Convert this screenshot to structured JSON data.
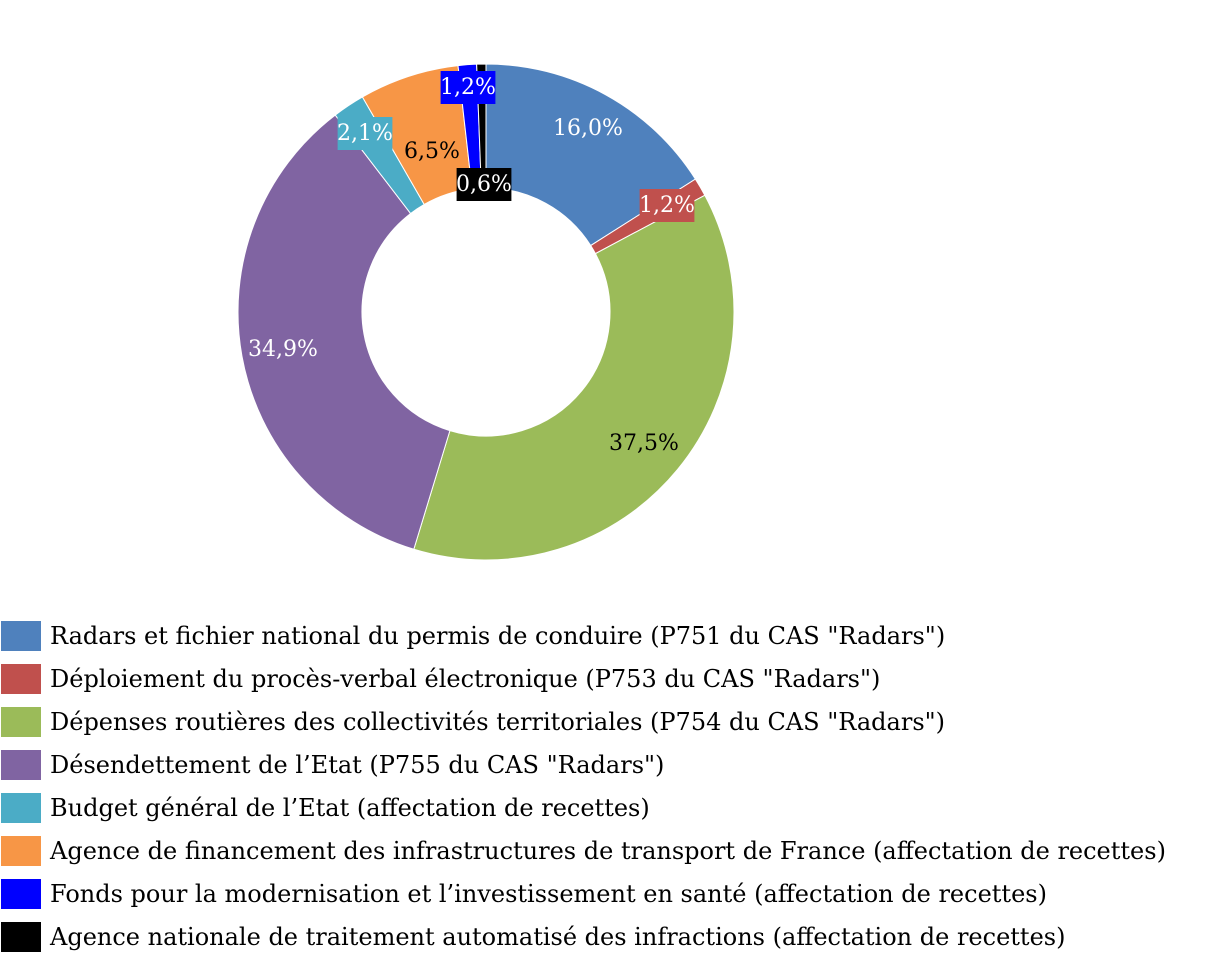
{
  "chart_data": {
    "type": "pie",
    "title": "",
    "slices": [
      {
        "label": "Radars et fichier national du permis de conduire (P751 du CAS \"Radars\")",
        "value": 16.0,
        "display": "16,0%",
        "color": "#4F81BD"
      },
      {
        "label": "Déploiement du procès-verbal électronique (P753 du CAS \"Radars\")",
        "value": 1.2,
        "display": "1,2%",
        "color": "#C0504D"
      },
      {
        "label": "Dépenses routières des collectivités territoriales (P754 du CAS \"Radars\")",
        "value": 37.5,
        "display": "37,5%",
        "color": "#9BBB59"
      },
      {
        "label": "Désendettement de l’Etat (P755 du CAS \"Radars\")",
        "value": 34.9,
        "display": "34,9%",
        "color": "#8064A2"
      },
      {
        "label": "Budget général de l’Etat (affectation de recettes)",
        "value": 2.1,
        "display": "2,1%",
        "color": "#4BACC6"
      },
      {
        "label": "Agence de financement des infrastructures de transport de France (affectation de recettes)",
        "value": 6.5,
        "display": "6,5%",
        "color": "#F79646"
      },
      {
        "label": "Fonds pour la modernisation et l’investissement en santé (affectation de recettes)",
        "value": 1.2,
        "display": "1,2%",
        "color": "#0000FF"
      },
      {
        "label": "Agence nationale de traitement automatisé des infractions (affectation de recettes)",
        "value": 0.6,
        "display": "0,6%",
        "color": "#000000"
      }
    ],
    "donut": true,
    "legend_position": "bottom"
  }
}
